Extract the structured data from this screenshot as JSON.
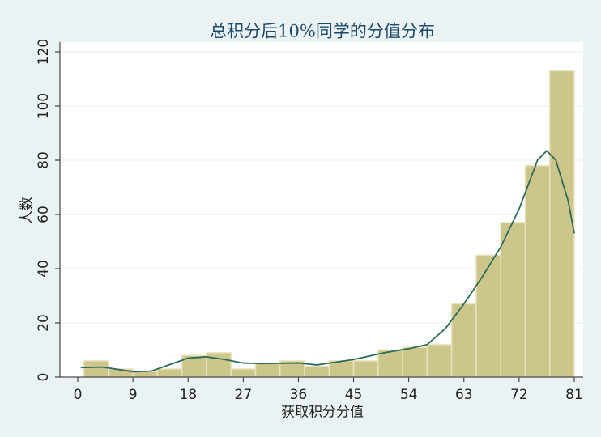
{
  "chart_data": {
    "type": "histogram",
    "title": "总积分后10%同学的分值分布",
    "x_label": "获取积分分值",
    "y_label": "人数",
    "bins": [
      1,
      5,
      9,
      13,
      17,
      21,
      25,
      29,
      33,
      37,
      41,
      45,
      49,
      53,
      57,
      61,
      65,
      69,
      73,
      77,
      81
    ],
    "values": [
      6,
      3,
      2,
      3,
      8,
      9,
      3,
      5,
      6,
      4,
      6,
      6,
      10,
      11,
      12,
      27,
      45,
      57,
      78,
      113
    ],
    "color": "#cdc68b",
    "density": {
      "color": "#2d6b5c",
      "x": [
        0.5,
        4,
        9,
        12,
        18,
        21,
        24,
        27,
        30,
        36,
        39,
        45,
        50,
        54,
        57,
        60,
        63,
        66,
        69,
        72,
        75,
        76.5,
        78,
        80,
        81
      ],
      "values": [
        3.5,
        3.7,
        2,
        2.2,
        7,
        7.5,
        6.5,
        5.2,
        5,
        5.2,
        4.5,
        6.5,
        9,
        10.5,
        12,
        18,
        27,
        37,
        48,
        62,
        80,
        83.5,
        80,
        65,
        53
      ]
    },
    "xlim": [
      0,
      81
    ],
    "xticks": [
      0,
      9,
      18,
      27,
      36,
      45,
      54,
      63,
      72,
      81
    ],
    "ylim": [
      0,
      120
    ],
    "yticks": [
      0,
      20,
      40,
      60,
      80,
      100,
      120
    ],
    "grid": true
  }
}
